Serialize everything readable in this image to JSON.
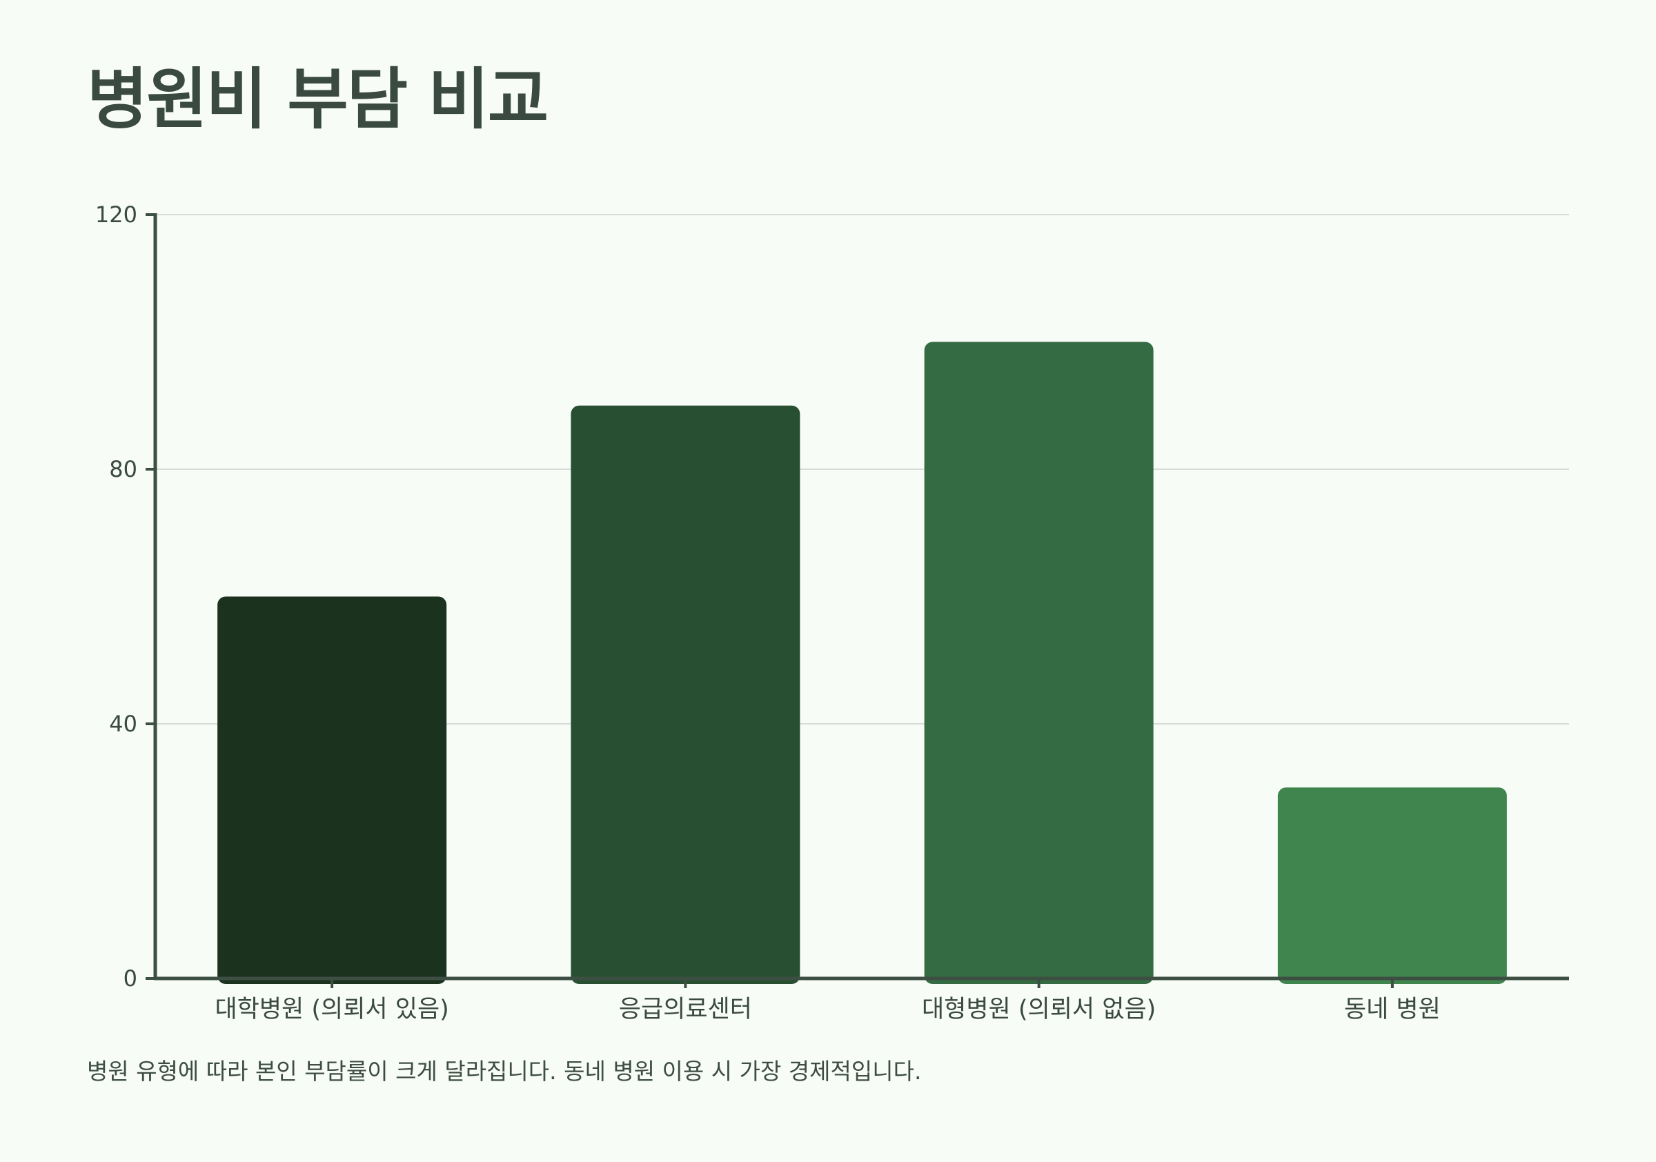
{
  "page": {
    "title": "병원비 부담 비교",
    "caption": "병원 유형에 따라 본인 부담률이 크게 달라집니다. 동네 병원 이용 시 가장 경제적입니다."
  },
  "chart_data": {
    "type": "bar",
    "title": "병원비 부담 비교",
    "xlabel": "",
    "ylabel": "",
    "categories": [
      "대학병원 (의뢰서 있음)",
      "응급의료센터",
      "대형병원 (의뢰서 없음)",
      "동네 병원"
    ],
    "values": [
      60,
      90,
      100,
      30
    ],
    "ylim": [
      0,
      120
    ],
    "yticks": [
      0,
      40,
      80,
      120
    ],
    "grid": true,
    "legend": "none",
    "colors": [
      "#1b321f",
      "#284f31",
      "#346b42",
      "#40854e"
    ],
    "axis_color": "#3d4f43",
    "grid_color": "#d8dcd8"
  }
}
